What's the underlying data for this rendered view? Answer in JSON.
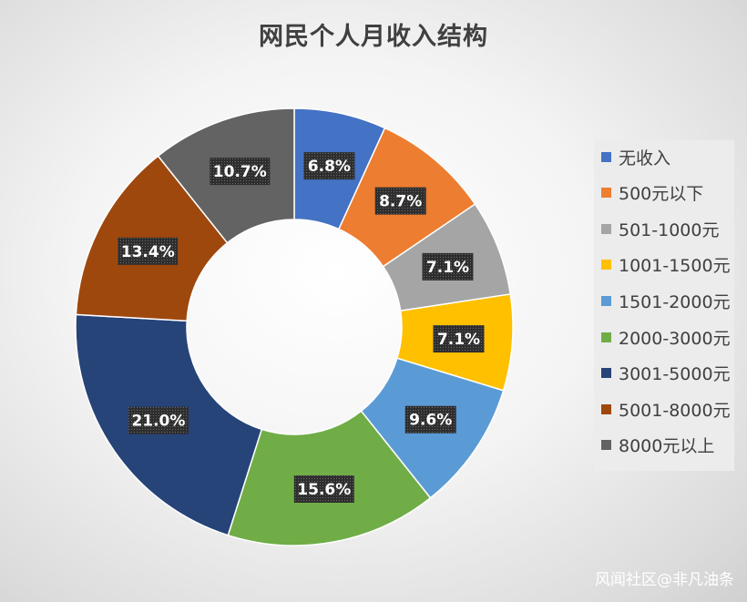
{
  "chart_data": {
    "type": "pie",
    "subtype": "donut",
    "title": "网民个人月收入结构",
    "categories": [
      "无收入",
      "500元以下",
      "501-1000元",
      "1001-1500元",
      "1501-2000元",
      "2000-3000元",
      "3001-5000元",
      "5001-8000元",
      "8000元以上"
    ],
    "values": [
      6.8,
      8.7,
      7.1,
      7.1,
      9.6,
      15.6,
      21.0,
      13.4,
      10.7
    ],
    "data_labels": [
      "6.8%",
      "8.7%",
      "7.1%",
      "7.1%",
      "9.6%",
      "15.6%",
      "21.0%",
      "13.4%",
      "10.7%"
    ],
    "colors": [
      "#4472C4",
      "#ED7D31",
      "#A5A5A5",
      "#FFC000",
      "#5B9BD5",
      "#70AD47",
      "#264478",
      "#9E480E",
      "#636363"
    ],
    "legend_position": "right",
    "data_label_background": "#333333"
  },
  "watermark": "风闻社区@非凡油条"
}
